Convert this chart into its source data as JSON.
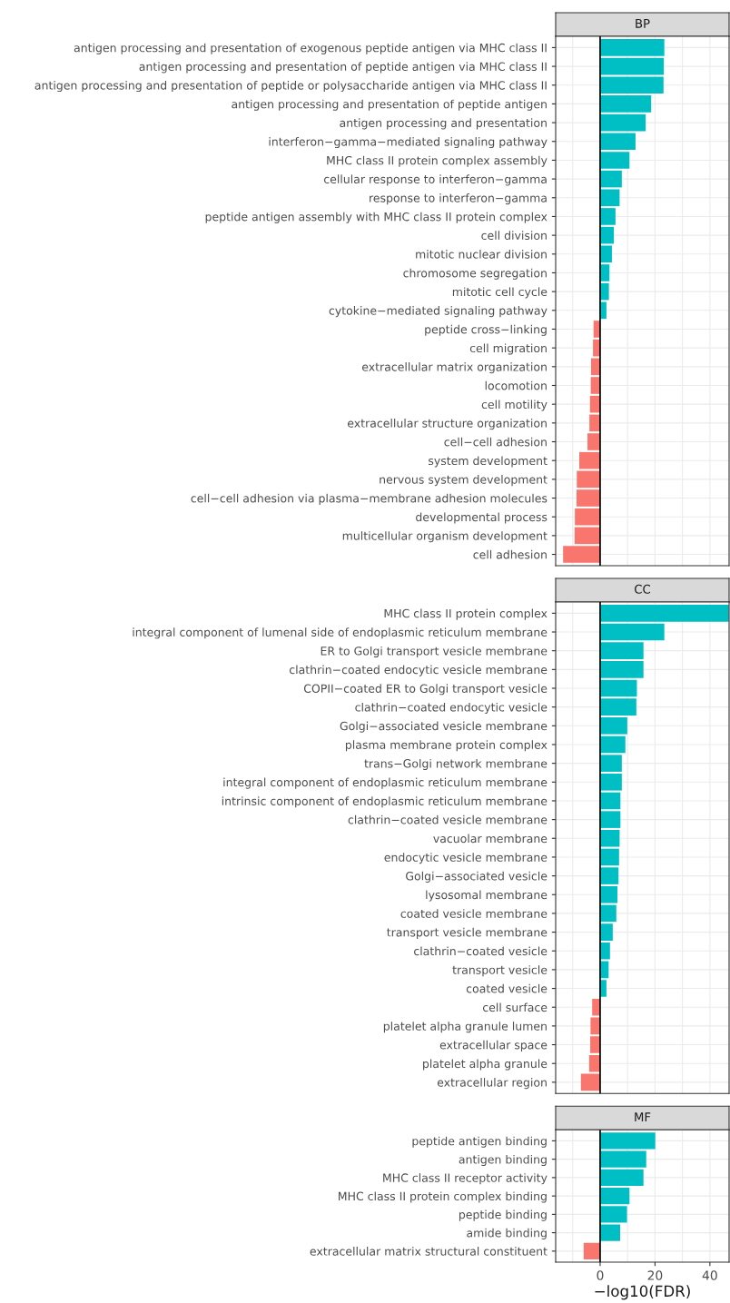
{
  "chart_data": [
    {
      "type": "bar",
      "orientation": "horizontal",
      "title": "BP",
      "categories": [
        "antigen processing and presentation of exogenous peptide antigen via MHC class II",
        "antigen processing and presentation of peptide antigen via MHC class II",
        "antigen processing and presentation of peptide or polysaccharide antigen via MHC class II",
        "antigen processing and presentation of peptide antigen",
        "antigen processing and presentation",
        "interferon−gamma−mediated signaling pathway",
        "MHC class II protein complex assembly",
        "cellular response to interferon−gamma",
        "response to interferon−gamma",
        "peptide antigen assembly with MHC class II protein complex",
        "cell division",
        "mitotic nuclear division",
        "chromosome segregation",
        "mitotic cell cycle",
        "cytokine−mediated signaling pathway",
        "peptide cross−linking",
        "cell migration",
        "extracellular matrix organization",
        "locomotion",
        "cell motility",
        "extracellular structure organization",
        "cell−cell adhesion",
        "system development",
        "nervous system development",
        "cell−cell adhesion via plasma−membrane adhesion molecules",
        "developmental process",
        "multicellular organism development",
        "cell adhesion"
      ],
      "values": [
        23.4,
        23.2,
        23.1,
        18.6,
        16.6,
        12.9,
        10.7,
        7.9,
        7.1,
        5.6,
        5.0,
        4.3,
        3.4,
        3.2,
        2.3,
        -2.4,
        -2.6,
        -3.3,
        -3.4,
        -3.7,
        -3.9,
        -4.6,
        -7.6,
        -8.5,
        -8.6,
        -9.2,
        -9.3,
        -13.5
      ],
      "colors": [
        "#00bfc4",
        "#00bfc4",
        "#00bfc4",
        "#00bfc4",
        "#00bfc4",
        "#00bfc4",
        "#00bfc4",
        "#00bfc4",
        "#00bfc4",
        "#00bfc4",
        "#00bfc4",
        "#00bfc4",
        "#00bfc4",
        "#00bfc4",
        "#00bfc4",
        "#f8766d",
        "#f8766d",
        "#f8766d",
        "#f8766d",
        "#f8766d",
        "#f8766d",
        "#f8766d",
        "#f8766d",
        "#f8766d",
        "#f8766d",
        "#f8766d",
        "#f8766d",
        "#f8766d"
      ],
      "xlim": [
        -16.2,
        47
      ],
      "xticks": [
        {
          "value": -10,
          "label": null
        },
        0,
        {
          "value": 10,
          "label": null
        },
        20,
        {
          "value": 30,
          "label": null
        },
        40
      ],
      "ref_lines": [
        {
          "axis": "x",
          "value": 0,
          "color": "#000000"
        }
      ],
      "grid": true,
      "tick_labels": "y"
    },
    {
      "type": "bar",
      "orientation": "horizontal",
      "title": "CC",
      "categories": [
        "MHC class II protein complex",
        "integral component of lumenal side of endoplasmic reticulum membrane",
        "ER to Golgi transport vesicle membrane",
        "clathrin−coated endocytic vesicle membrane",
        "COPII−coated ER to Golgi transport vesicle",
        "clathrin−coated endocytic vesicle",
        "Golgi−associated vesicle membrane",
        "plasma membrane protein complex",
        "trans−Golgi network membrane",
        "integral component of endoplasmic reticulum membrane",
        "intrinsic component of endoplasmic reticulum membrane",
        "clathrin−coated vesicle membrane",
        "vacuolar membrane",
        "endocytic vesicle membrane",
        "Golgi−associated vesicle",
        "lysosomal membrane",
        "coated vesicle membrane",
        "transport vesicle membrane",
        "clathrin−coated vesicle",
        "transport vesicle",
        "coated vesicle",
        "cell surface",
        "platelet alpha granule lumen",
        "extracellular space",
        "platelet alpha granule",
        "extracellular region"
      ],
      "values": [
        46.9,
        23.4,
        15.8,
        15.8,
        13.4,
        13.2,
        9.9,
        9.2,
        7.9,
        7.9,
        7.4,
        7.4,
        7.1,
        6.9,
        6.7,
        6.3,
        5.9,
        4.6,
        3.6,
        3.1,
        2.3,
        -2.9,
        -3.5,
        -3.6,
        -4.0,
        -7.0
      ],
      "colors": [
        "#00bfc4",
        "#00bfc4",
        "#00bfc4",
        "#00bfc4",
        "#00bfc4",
        "#00bfc4",
        "#00bfc4",
        "#00bfc4",
        "#00bfc4",
        "#00bfc4",
        "#00bfc4",
        "#00bfc4",
        "#00bfc4",
        "#00bfc4",
        "#00bfc4",
        "#00bfc4",
        "#00bfc4",
        "#00bfc4",
        "#00bfc4",
        "#00bfc4",
        "#00bfc4",
        "#f8766d",
        "#f8766d",
        "#f8766d",
        "#f8766d",
        "#f8766d"
      ],
      "xlim": [
        -16.2,
        47
      ],
      "xticks": [
        {
          "value": -10,
          "label": null
        },
        0,
        {
          "value": 10,
          "label": null
        },
        20,
        {
          "value": 30,
          "label": null
        },
        40
      ],
      "ref_lines": [
        {
          "axis": "x",
          "value": 0,
          "color": "#000000"
        }
      ],
      "grid": true,
      "tick_labels": "y"
    },
    {
      "type": "bar",
      "orientation": "horizontal",
      "title": "MF",
      "xlabel": "−log10(FDR)",
      "categories": [
        "peptide antigen binding",
        "antigen binding",
        "MHC class II receptor activity",
        "MHC class II protein complex binding",
        "peptide binding",
        "amide binding",
        "extracellular matrix structural constituent"
      ],
      "values": [
        20.1,
        16.8,
        15.8,
        10.7,
        9.8,
        7.3,
        -6.0
      ],
      "colors": [
        "#00bfc4",
        "#00bfc4",
        "#00bfc4",
        "#00bfc4",
        "#00bfc4",
        "#00bfc4",
        "#f8766d"
      ],
      "xlim": [
        -16.2,
        47
      ],
      "xticks": [
        {
          "value": -10,
          "label": null
        },
        0,
        {
          "value": 10,
          "label": null
        },
        20,
        {
          "value": 30,
          "label": null
        },
        40
      ],
      "ref_lines": [
        {
          "axis": "x",
          "value": 0,
          "color": "#000000"
        }
      ],
      "grid": true
    }
  ]
}
